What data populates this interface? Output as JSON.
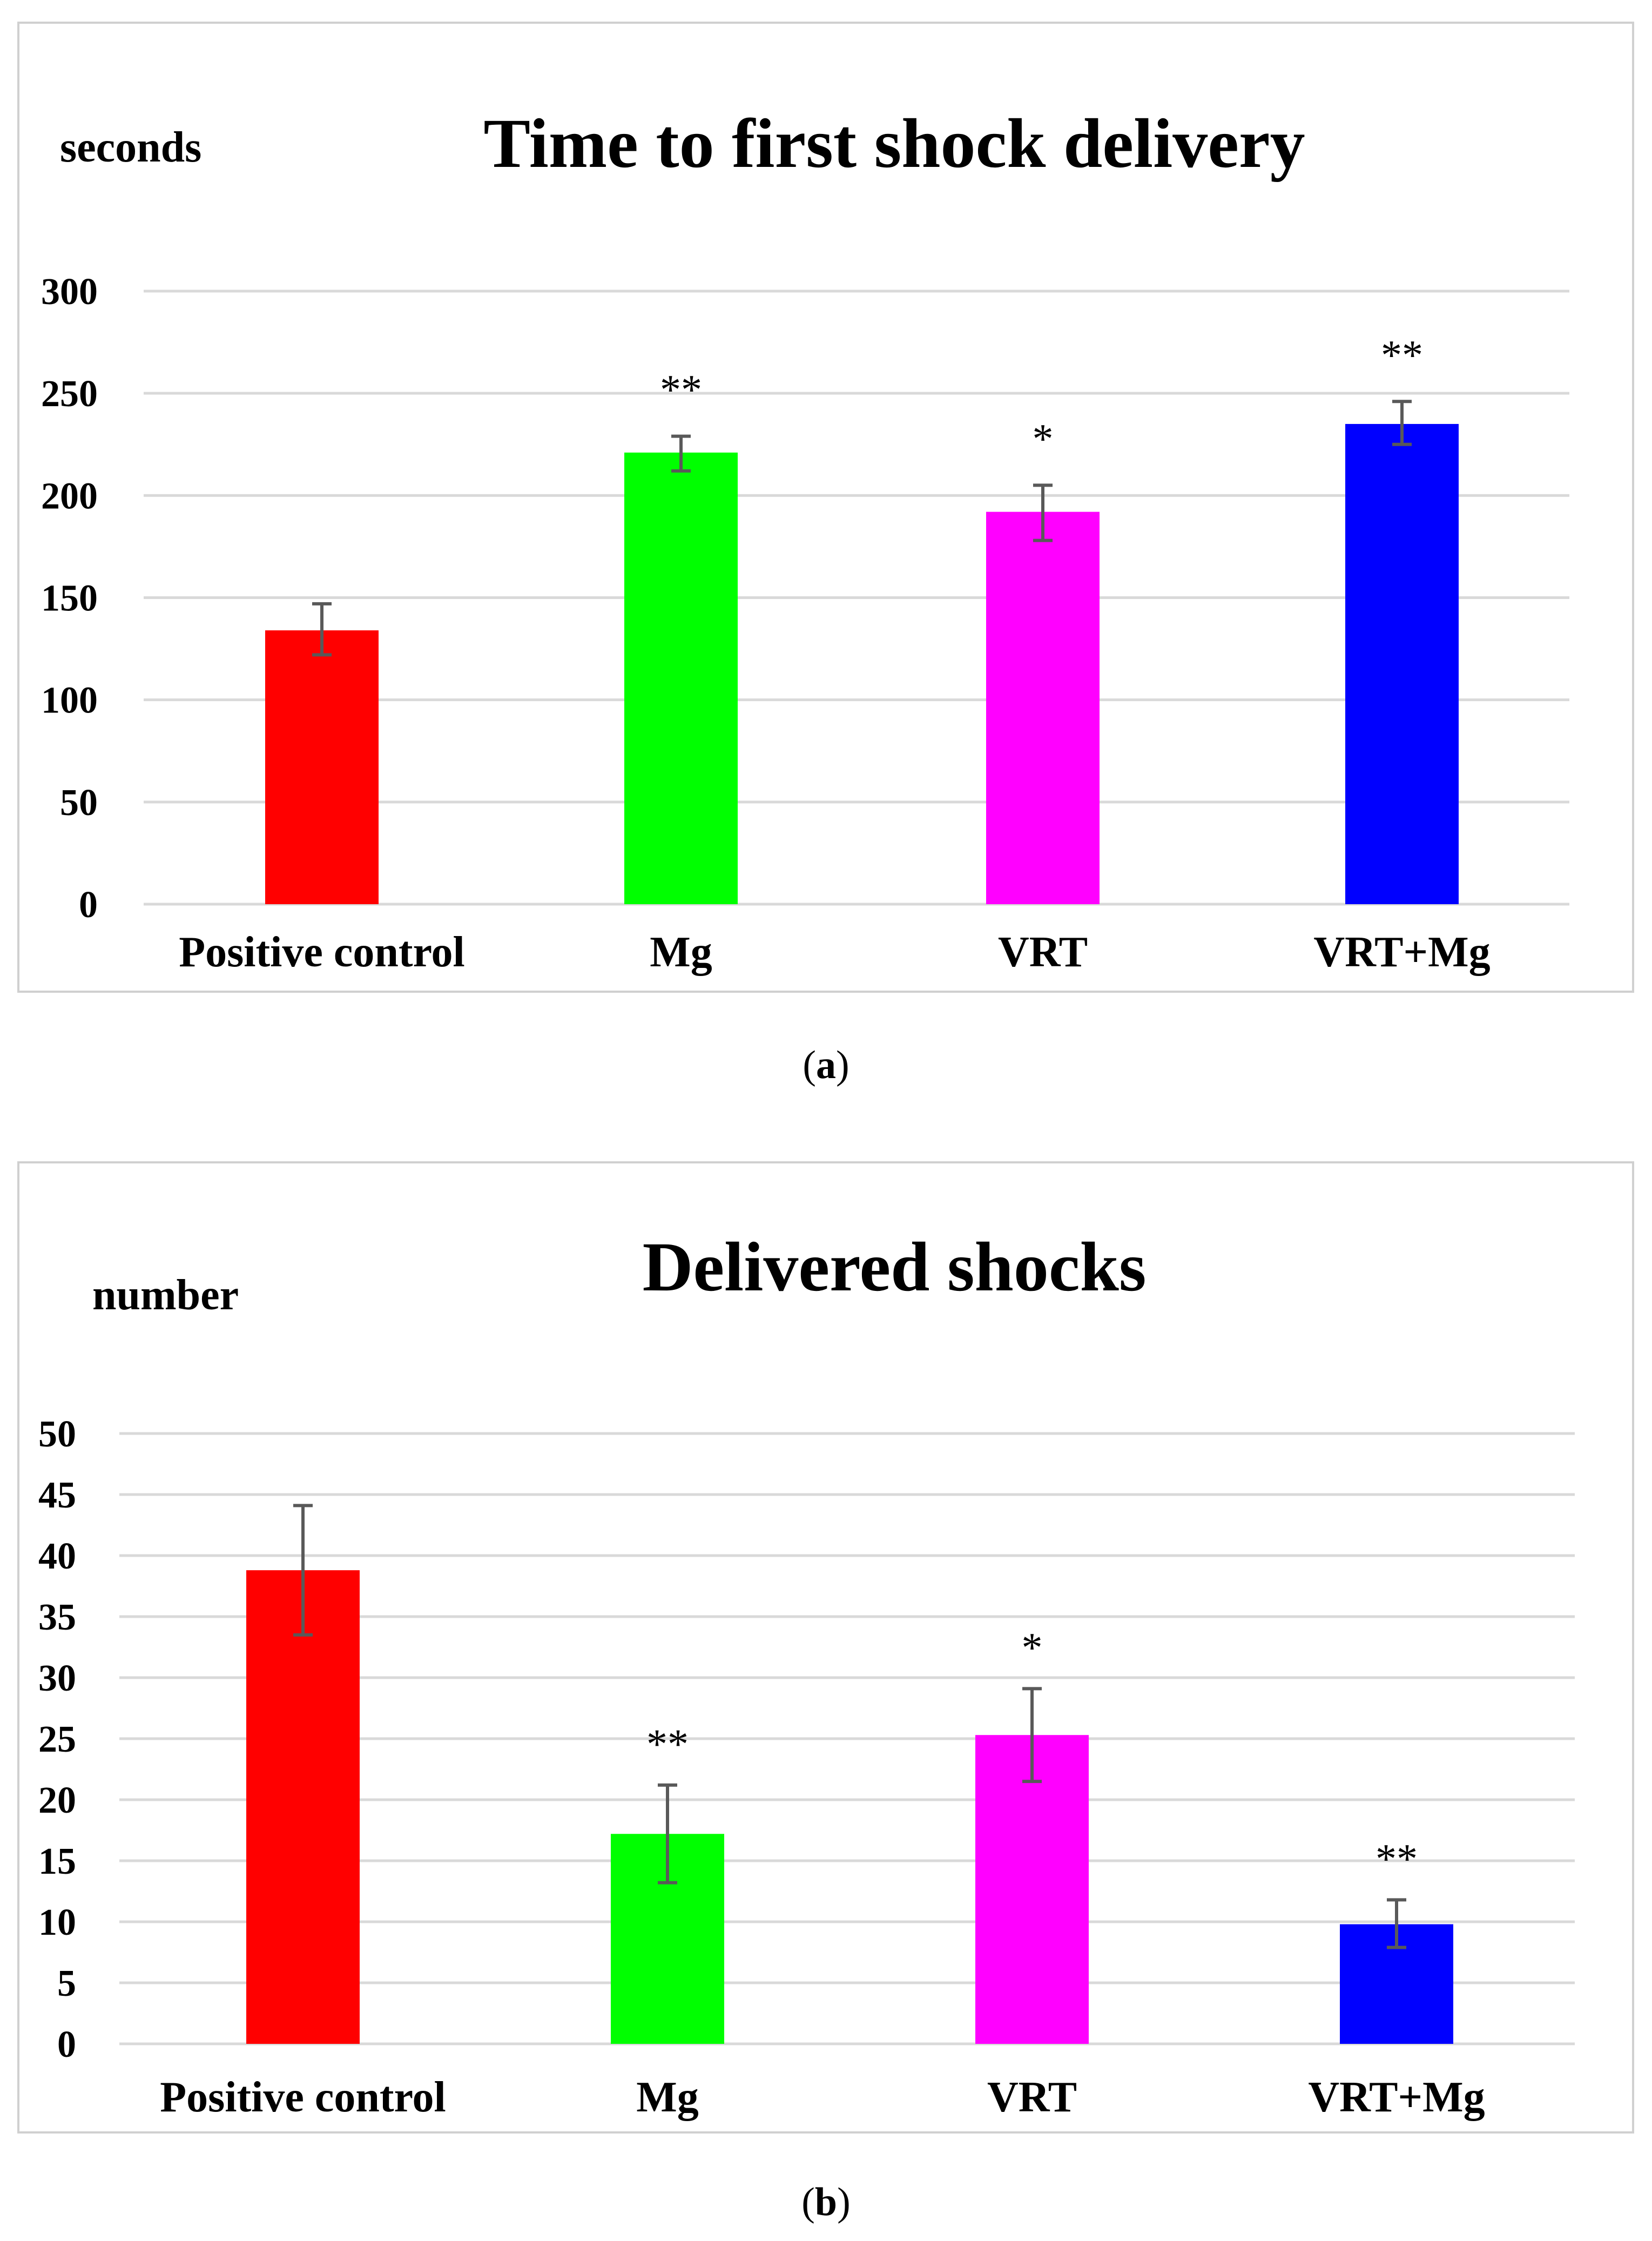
{
  "captions": {
    "a": {
      "open": "(",
      "letter": "a",
      "close": ")"
    },
    "b": {
      "open": "(",
      "letter": "b",
      "close": ")"
    }
  },
  "colors": {
    "positive_control": "#ff0000",
    "mg": "#00ff00",
    "vrt": "#ff00ff",
    "vrt_mg": "#0000ff",
    "grid": "#d9d9d9",
    "error_bar": "#595959"
  },
  "chart_data": [
    {
      "id": "a",
      "type": "bar",
      "title": "Time to first shock delivery",
      "ylabel": "seconds",
      "xlabel": "",
      "categories": [
        "Positive control",
        "Mg",
        "VRT",
        "VRT+Mg"
      ],
      "values": [
        134,
        221,
        192,
        235
      ],
      "error_low": [
        122,
        212,
        178,
        225
      ],
      "error_high": [
        147,
        229,
        205,
        246
      ],
      "significance": [
        "",
        "**",
        "*",
        "**"
      ],
      "ylim": [
        0,
        300
      ],
      "yticks": [
        0,
        50,
        100,
        150,
        200,
        250,
        300
      ],
      "grid": true
    },
    {
      "id": "b",
      "type": "bar",
      "title": "Delivered shocks",
      "ylabel": "number",
      "xlabel": "",
      "categories": [
        "Positive control",
        "Mg",
        "VRT",
        "VRT+Mg"
      ],
      "values": [
        38.8,
        17.2,
        25.3,
        9.8
      ],
      "error_low": [
        33.5,
        13.2,
        21.5,
        7.9
      ],
      "error_high": [
        44.1,
        21.2,
        29.1,
        11.8
      ],
      "significance": [
        "",
        "**",
        "*",
        "**"
      ],
      "ylim": [
        0,
        50
      ],
      "yticks": [
        0,
        5,
        10,
        15,
        20,
        25,
        30,
        35,
        40,
        45,
        50
      ],
      "grid": true
    }
  ]
}
